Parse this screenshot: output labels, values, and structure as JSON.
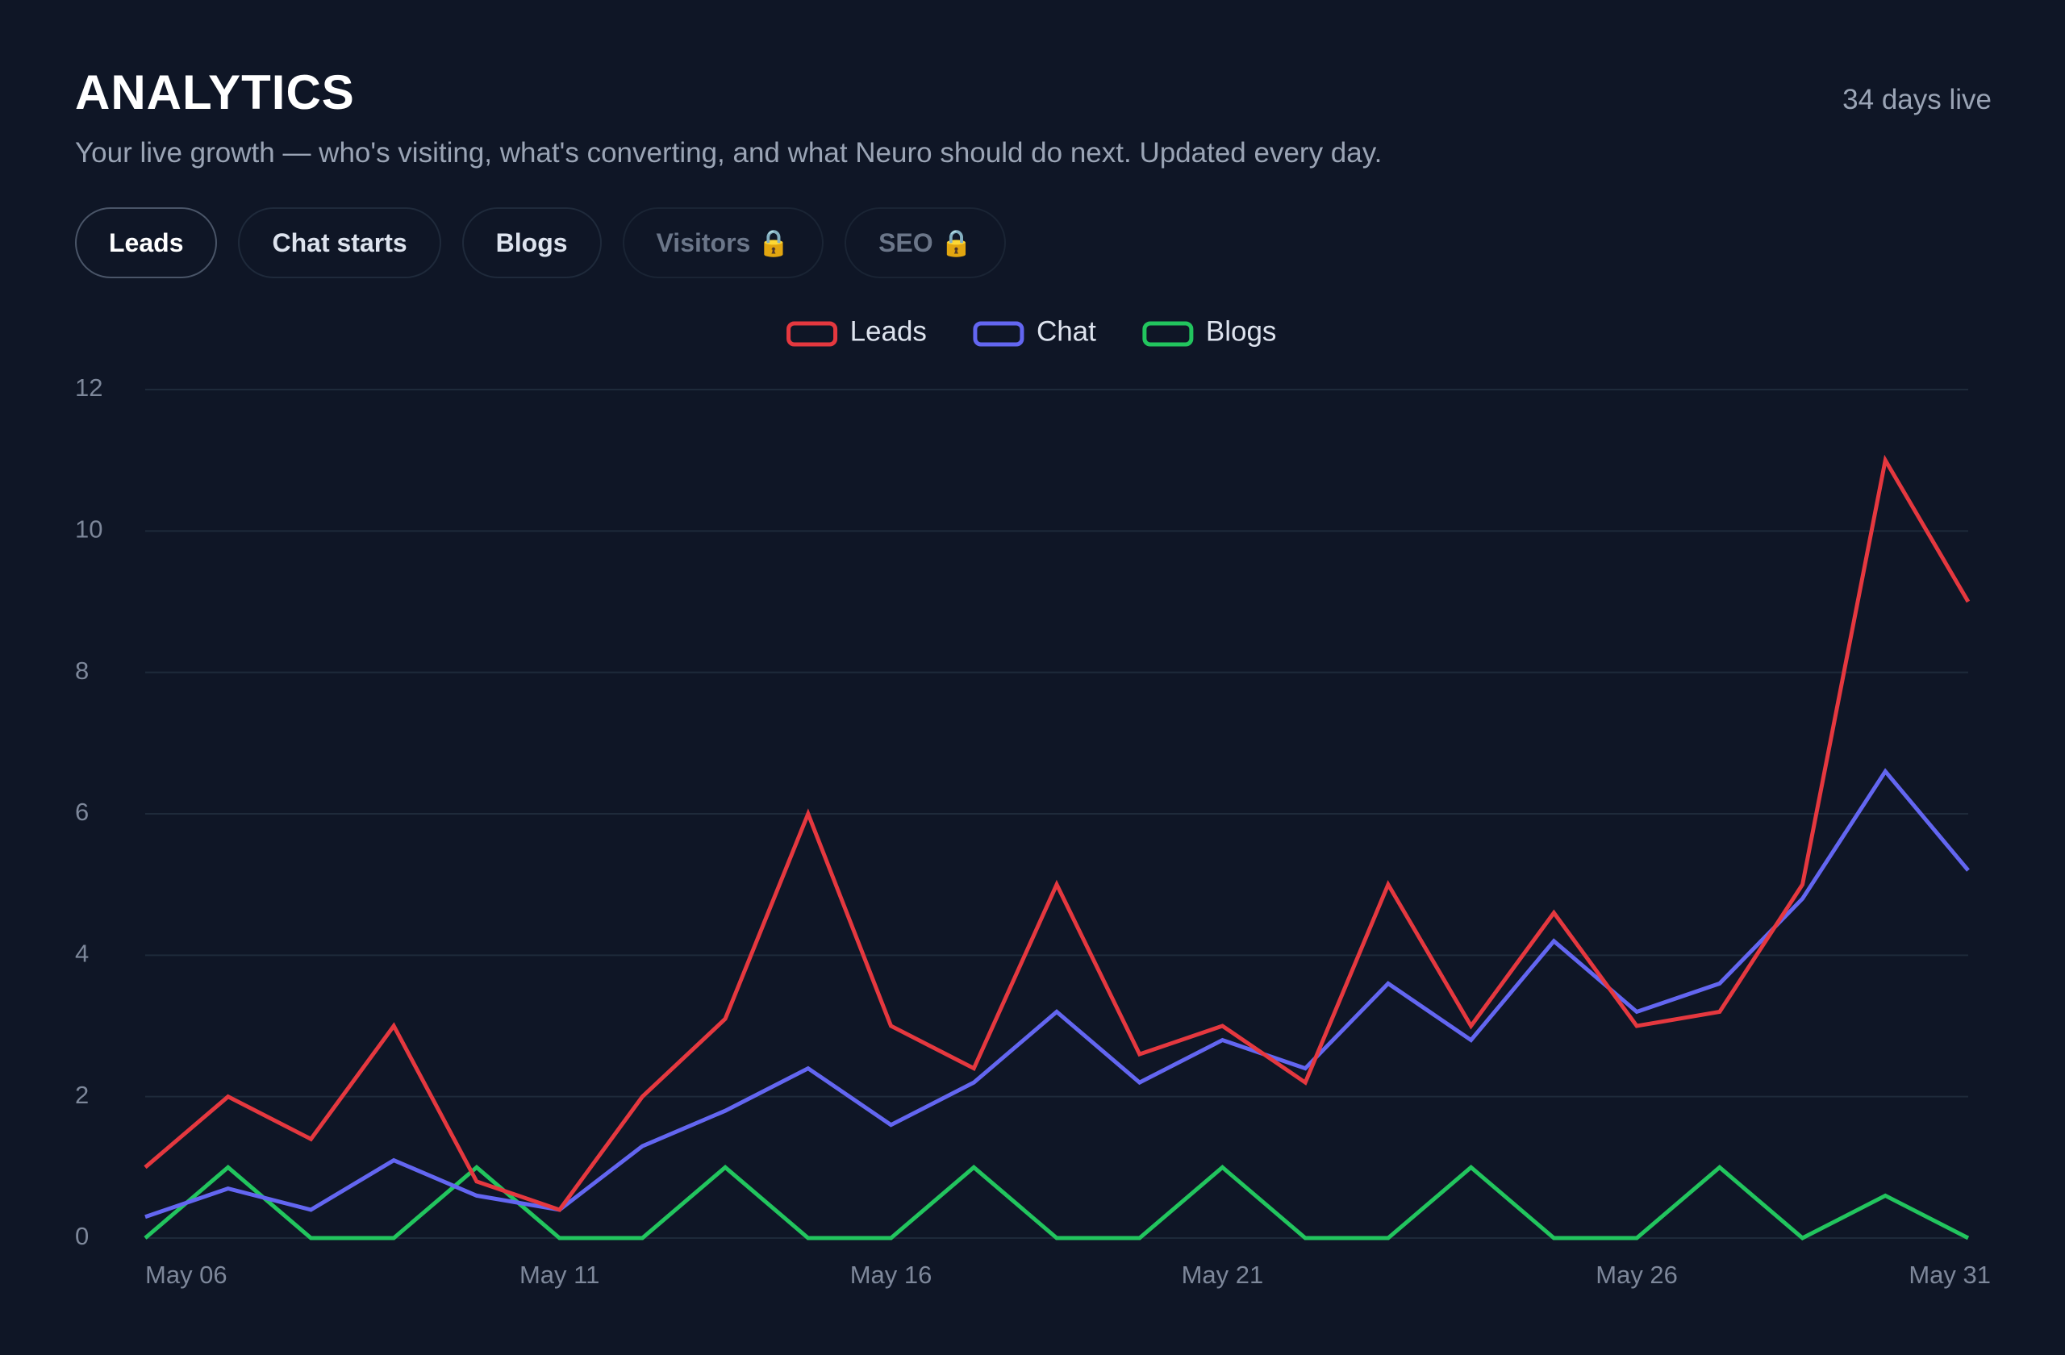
{
  "header": {
    "title": "ANALYTICS",
    "status": "34 days live",
    "subtitle": "Your live growth — who's visiting, what's converting, and what Neuro should do next. Updated every day."
  },
  "tabs": [
    {
      "label": "Leads",
      "active": true
    },
    {
      "label": "Chat starts"
    },
    {
      "label": "Blogs"
    },
    {
      "label": "Visitors 🔒",
      "locked": true
    },
    {
      "label": "SEO 🔒",
      "locked": true
    }
  ],
  "chart_data": {
    "type": "line",
    "categories": [
      "May 06",
      null,
      null,
      null,
      null,
      "May 11",
      null,
      null,
      null,
      "May 16",
      null,
      null,
      null,
      "May 21",
      null,
      null,
      null,
      null,
      "May 26",
      null,
      null,
      null,
      "May 31"
    ],
    "series": [
      {
        "name": "Leads",
        "color": "#e5383f",
        "values": [
          1,
          2,
          1.4,
          3,
          0.8,
          0.4,
          2,
          3.1,
          6,
          3,
          2.4,
          5,
          2.6,
          3,
          2.2,
          5,
          3,
          4.6,
          3,
          3.2,
          5,
          11,
          9
        ]
      },
      {
        "name": "Chat",
        "color": "#6366f1",
        "values": [
          0.3,
          0.7,
          0.4,
          1.1,
          0.6,
          0.4,
          1.3,
          1.8,
          2.4,
          1.6,
          2.2,
          3.2,
          2.2,
          2.8,
          2.4,
          3.6,
          2.8,
          4.2,
          3.2,
          3.6,
          4.8,
          6.6,
          5.2
        ]
      },
      {
        "name": "Blogs",
        "color": "#22c55e",
        "values": [
          0,
          1,
          0,
          0,
          1,
          0,
          0,
          1,
          0,
          0,
          1,
          0,
          0,
          1,
          0,
          0,
          1,
          0,
          0,
          1,
          0,
          0.6,
          0
        ]
      }
    ],
    "ylim": [
      0,
      12
    ],
    "yticks": [
      0,
      2,
      4,
      6,
      8,
      10,
      12
    ],
    "grid": true,
    "legend": "top"
  }
}
